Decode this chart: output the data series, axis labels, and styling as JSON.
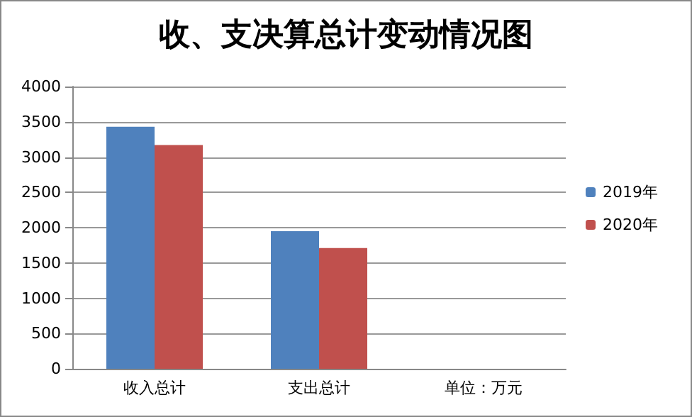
{
  "chart_data": {
    "type": "bar",
    "title": "收、支决算总计变动情况图",
    "categories": [
      "收入总计",
      "支出总计",
      "单位：万元"
    ],
    "series": [
      {
        "name": "2019年",
        "color": "#4f81bd",
        "values": [
          3430,
          1950,
          null
        ]
      },
      {
        "name": "2020年",
        "color": "#c0504d",
        "values": [
          3170,
          1710,
          null
        ]
      }
    ],
    "ylim": [
      0,
      4000
    ],
    "yticks": [
      0,
      500,
      1000,
      1500,
      2000,
      2500,
      3000,
      3500,
      4000
    ],
    "grid": "y",
    "legend": "right"
  }
}
